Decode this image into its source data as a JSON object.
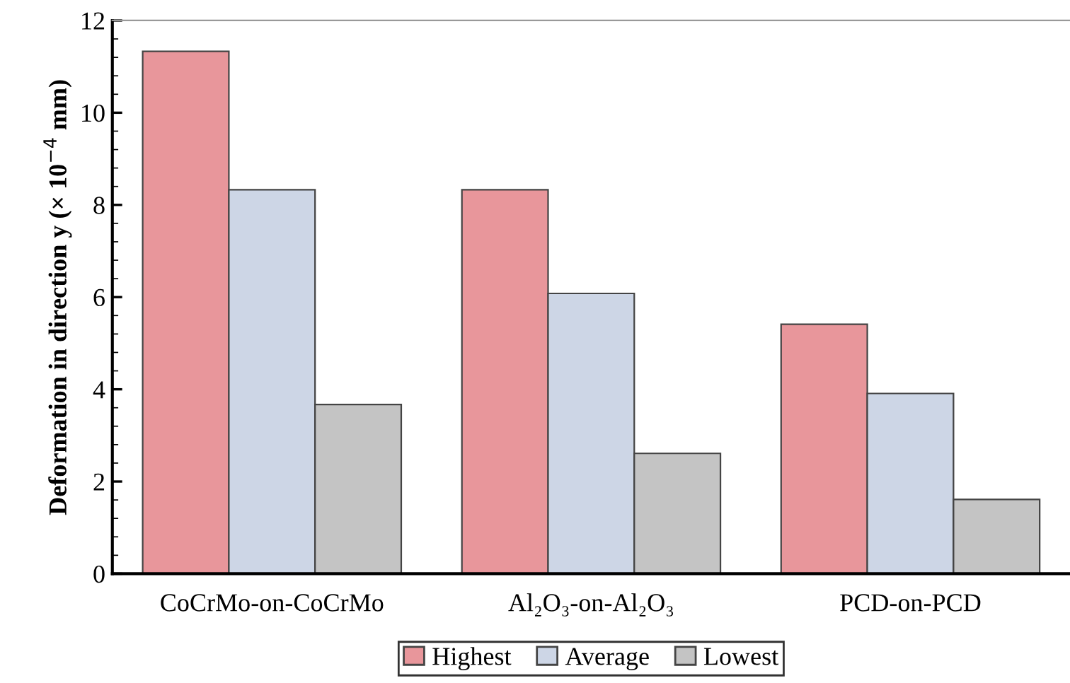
{
  "chart_data": {
    "type": "bar",
    "ylabel": "Deformation in direction y (× 10$^{−4}$ mm)",
    "categories": [
      "CoCrMo-on-CoCrMo",
      "Al₂O₃-on-Al₂O₃",
      "PCD-on-PCD"
    ],
    "series": [
      {
        "name": "Highest",
        "color": "#e8969b",
        "values": [
          11.33,
          8.33,
          5.41
        ]
      },
      {
        "name": "Average",
        "color": "#cdd6e6",
        "values": [
          8.33,
          6.08,
          3.91
        ]
      },
      {
        "name": "Lowest",
        "color": "#c4c4c4",
        "values": [
          3.67,
          2.61,
          1.61
        ]
      }
    ],
    "ylim": [
      0,
      12
    ],
    "yticks": [
      0,
      2,
      4,
      6,
      8,
      10,
      12
    ],
    "grid": false,
    "legend": "bottom"
  }
}
